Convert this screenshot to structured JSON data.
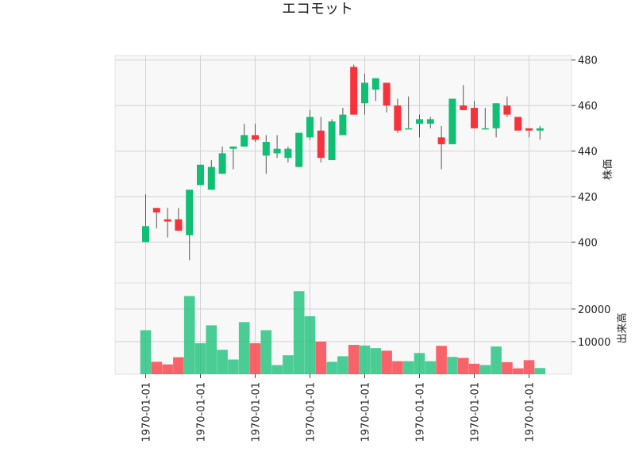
{
  "chart_data": {
    "type": "candlestick",
    "title": "エコモット",
    "xlabel": "",
    "x_tick_labels": [
      "1970-01-01",
      "1970-01-01",
      "1970-01-01",
      "1970-01-01",
      "1970-01-01",
      "1970-01-01",
      "1970-01-01",
      "1970-01-01"
    ],
    "price_panel": {
      "ylabel": "株価",
      "ylim": [
        382,
        482
      ],
      "yticks": [
        400,
        420,
        440,
        460,
        480
      ],
      "candles": [
        {
          "open": 400,
          "high": 421,
          "low": 400,
          "close": 407
        },
        {
          "open": 415,
          "high": 415,
          "low": 406,
          "close": 413
        },
        {
          "open": 410,
          "high": 415,
          "low": 402,
          "close": 409
        },
        {
          "open": 410,
          "high": 415,
          "low": 405,
          "close": 405
        },
        {
          "open": 403,
          "high": 423,
          "low": 392,
          "close": 423
        },
        {
          "open": 425,
          "high": 434,
          "low": 425,
          "close": 434
        },
        {
          "open": 423,
          "high": 436,
          "low": 423,
          "close": 433
        },
        {
          "open": 430,
          "high": 442,
          "low": 430,
          "close": 439
        },
        {
          "open": 441,
          "high": 442,
          "low": 432,
          "close": 442
        },
        {
          "open": 442,
          "high": 452,
          "low": 442,
          "close": 447
        },
        {
          "open": 447,
          "high": 452,
          "low": 444,
          "close": 445
        },
        {
          "open": 438,
          "high": 447,
          "low": 430,
          "close": 444
        },
        {
          "open": 439,
          "high": 447,
          "low": 437,
          "close": 441
        },
        {
          "open": 437,
          "high": 442,
          "low": 435,
          "close": 441
        },
        {
          "open": 433,
          "high": 448,
          "low": 433,
          "close": 448
        },
        {
          "open": 446,
          "high": 458,
          "low": 445,
          "close": 455
        },
        {
          "open": 449,
          "high": 455,
          "low": 435,
          "close": 437
        },
        {
          "open": 436,
          "high": 454,
          "low": 436,
          "close": 453
        },
        {
          "open": 447,
          "high": 459,
          "low": 447,
          "close": 456
        },
        {
          "open": 477,
          "high": 478,
          "low": 456,
          "close": 456
        },
        {
          "open": 461,
          "high": 474,
          "low": 456,
          "close": 470
        },
        {
          "open": 467,
          "high": 472,
          "low": 462,
          "close": 472
        },
        {
          "open": 470,
          "high": 470,
          "low": 457,
          "close": 460
        },
        {
          "open": 460,
          "high": 463,
          "low": 448,
          "close": 449
        },
        {
          "open": 450,
          "high": 464,
          "low": 450,
          "close": 450
        },
        {
          "open": 452,
          "high": 456,
          "low": 446,
          "close": 454
        },
        {
          "open": 452,
          "high": 455,
          "low": 450,
          "close": 454
        },
        {
          "open": 446,
          "high": 451,
          "low": 432,
          "close": 443
        },
        {
          "open": 443,
          "high": 463,
          "low": 443,
          "close": 463
        },
        {
          "open": 460,
          "high": 469,
          "low": 458,
          "close": 458
        },
        {
          "open": 459,
          "high": 462,
          "low": 450,
          "close": 450
        },
        {
          "open": 450,
          "high": 459,
          "low": 450,
          "close": 450
        },
        {
          "open": 450,
          "high": 461,
          "low": 446,
          "close": 461
        },
        {
          "open": 460,
          "high": 464,
          "low": 455,
          "close": 456
        },
        {
          "open": 455,
          "high": 455,
          "low": 449,
          "close": 449
        },
        {
          "open": 450,
          "high": 450,
          "low": 446,
          "close": 449
        },
        {
          "open": 449,
          "high": 451,
          "low": 445,
          "close": 450
        }
      ]
    },
    "volume_panel": {
      "ylabel": "出来高",
      "ylim": [
        0,
        28000
      ],
      "yticks": [
        10000,
        20000
      ],
      "values": [
        13500,
        3800,
        3000,
        5200,
        24000,
        9500,
        15000,
        7500,
        4500,
        16000,
        9500,
        13500,
        2800,
        5800,
        25500,
        17800,
        10000,
        3800,
        5500,
        9000,
        8800,
        8000,
        7200,
        4000,
        4000,
        6500,
        4000,
        8700,
        5300,
        5000,
        3200,
        2800,
        8500,
        3700,
        1800,
        4300,
        1900
      ]
    },
    "colors": {
      "up": "#0fbf73",
      "down": "#f7323a",
      "panel_bg": "#f8f8f8",
      "grid": "#d2d2d2",
      "wick": "#555555"
    }
  }
}
